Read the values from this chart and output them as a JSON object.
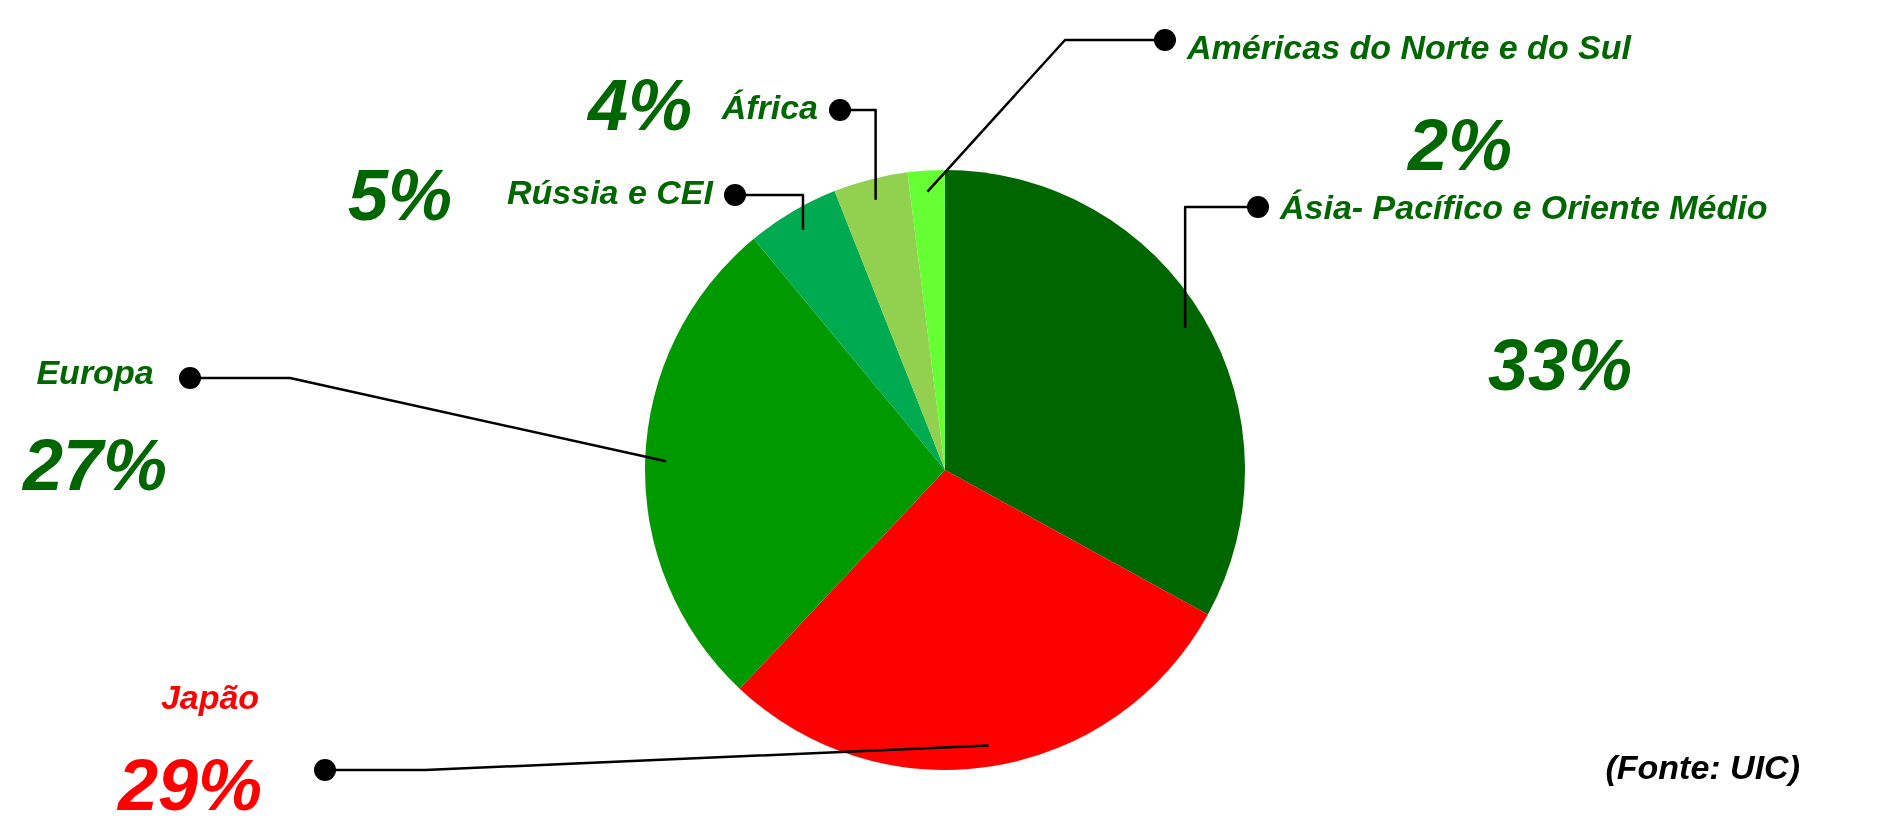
{
  "chart_data": {
    "type": "pie",
    "categories": [
      "Ásia- Pacífico e Oriente Médio",
      "Japão",
      "Europa",
      "Rússia e CEI",
      "África",
      "Américas do Norte e do Sul"
    ],
    "values": [
      33,
      29,
      27,
      5,
      4,
      2
    ],
    "colors": [
      "#006600",
      "#ff0000",
      "#009900",
      "#00aa50",
      "#92d050",
      "#66ff33"
    ],
    "value_labels": [
      "33%",
      "29%",
      "27%",
      "5%",
      "4%",
      "2%"
    ],
    "annotations": [
      "(Fonte: UIC)"
    ]
  }
}
